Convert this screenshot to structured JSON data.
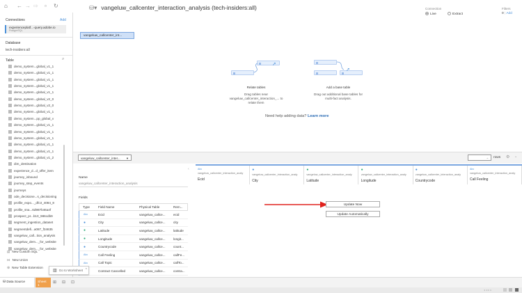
{
  "toolbar": {
    "icons": [
      "home-icon",
      "back-icon",
      "forward-icon",
      "redo-icon",
      "save-icon",
      "refresh-icon"
    ]
  },
  "title": "vangeluw_callcenter_interaction_analysis (tech-insiders:all)",
  "connection_mode": {
    "label": "Connection",
    "options": [
      "Live",
      "Extract"
    ],
    "selected": "Live"
  },
  "filters": {
    "label": "Filters",
    "count": "0",
    "add": "Add"
  },
  "sidebar": {
    "connections_label": "Connections",
    "add": "Add",
    "connection_name": "experienceplatf...-query.adobe.io",
    "connection_type": "PostgreSQL",
    "database_label": "Database",
    "database": "tech-insiders:all",
    "table_label": "Table",
    "tables": [
      "demo_system...global_v1_1",
      "demo_system...global_v1_1",
      "demo_system...global_v1_1",
      "demo_system...global_v1_1",
      "demo_system...global_v1_1",
      "demo_system...global_v2_0",
      "demo_system...global_v2_0",
      "demo_system...global_v1_1",
      "demo_system...pp_global_v",
      "demo_system...global_v1_1",
      "demo_system...global_v1_1",
      "demo_system...global_v1_1",
      "demo_system...global_v1_1",
      "demo_system...global_v1_1",
      "demo_system...global_v1_2",
      "dim_destination",
      "experience_d...d_offer_item",
      "journey_inbound",
      "journey_step_events",
      "journeys",
      "ode_decisione...s_decisioning",
      "profile_expo..._dfc3_4084_8",
      "profile_sna...6d987b46a4f",
      "prospect_pr...b10_986cdb9",
      "segment_ingestion_dataset",
      "segmentdefi...a087_f34635",
      "vangeluw_call...tion_analysis",
      "vangeluw_dem..._for_website",
      "vangeluw_dem..._for_website"
    ],
    "new_custom_sql": "New Custom SQL",
    "new_union": "New Union",
    "new_table_ext": "New Table Extension"
  },
  "canvas": {
    "table": "vangeluw_callcenter_int...",
    "relate_title": "Relate tables",
    "relate_desc": "Drag tables near vangeluw_callcenter_interaction_... to relate them",
    "base_title": "Add a base table",
    "base_desc": "Drag out additional base tables for multi-fact analysis.",
    "help": "Need help adding data?",
    "learn_more": "Learn more"
  },
  "bottom": {
    "table_select": "vangeluw_callcenter_inter...",
    "rows_label": "rows",
    "name_label": "Name",
    "name_value": "vangeluw_callcenter_interaction_analysis",
    "fields_label": "Fields",
    "field_headers": [
      "Type",
      "Field Name",
      "Physical Table",
      "Rem..."
    ],
    "fields": [
      {
        "type": "Abc",
        "name": "Ecid",
        "table": "vangeluw_callce...",
        "remote": "ecid",
        "color": "#4a90d9"
      },
      {
        "type": "globe",
        "name": "City",
        "table": "vangeluw_callce...",
        "remote": "city",
        "color": "#4a90d9"
      },
      {
        "type": "globe",
        "name": "Latitude",
        "table": "vangeluw_callce...",
        "remote": "latitude",
        "color": "#2aa876"
      },
      {
        "type": "globe",
        "name": "Longitude",
        "table": "vangeluw_callce...",
        "remote": "longit...",
        "color": "#2aa876"
      },
      {
        "type": "globe",
        "name": "Countrycode",
        "table": "vangeluw_callce...",
        "remote": "count...",
        "color": "#4a90d9"
      },
      {
        "type": "Abc",
        "name": "Call Feeling",
        "table": "vangeluw_callce...",
        "remote": "callFe...",
        "color": "#4a90d9"
      },
      {
        "type": "Abc",
        "name": "Call Topic",
        "table": "vangeluw_callce...",
        "remote": "callTo...",
        "color": "#4a90d9"
      },
      {
        "type": "T|F",
        "name": "Contract Cancelled",
        "table": "vangeluw_callce...",
        "remote": "contra...",
        "color": "#4a90d9"
      }
    ],
    "grid_columns": [
      {
        "type": "Abc",
        "source": "vangeluw_callcenter_interaction_analy",
        "name": "Ecid",
        "color": "#4a90d9"
      },
      {
        "type": "globe",
        "source": "vangeluw_callcenter_interaction_analy",
        "name": "City",
        "color": "#4a90d9"
      },
      {
        "type": "globe",
        "source": "vangeluw_callcenter_interaction_analy",
        "name": "Latitude",
        "color": "#2aa876"
      },
      {
        "type": "globe",
        "source": "vangeluw_callcenter_interaction_analy",
        "name": "Longitude",
        "color": "#2aa876"
      },
      {
        "type": "globe",
        "source": "vangeluw_callcenter_interaction_analy",
        "name": "Countrycode",
        "color": "#4a90d9"
      },
      {
        "type": "Abc",
        "source": "vangeluw_callcenter_interaction_analy",
        "name": "Call Feeling",
        "color": "#4a90d9"
      }
    ],
    "update_now": "Update Now",
    "update_auto": "Update Automatically"
  },
  "tooltip": {
    "go_to_worksheet": "Go to Worksheet"
  },
  "status": {
    "data_source": "Data Source",
    "sheet": "Sheet 1",
    "sheet_color": "#f0a04b"
  }
}
